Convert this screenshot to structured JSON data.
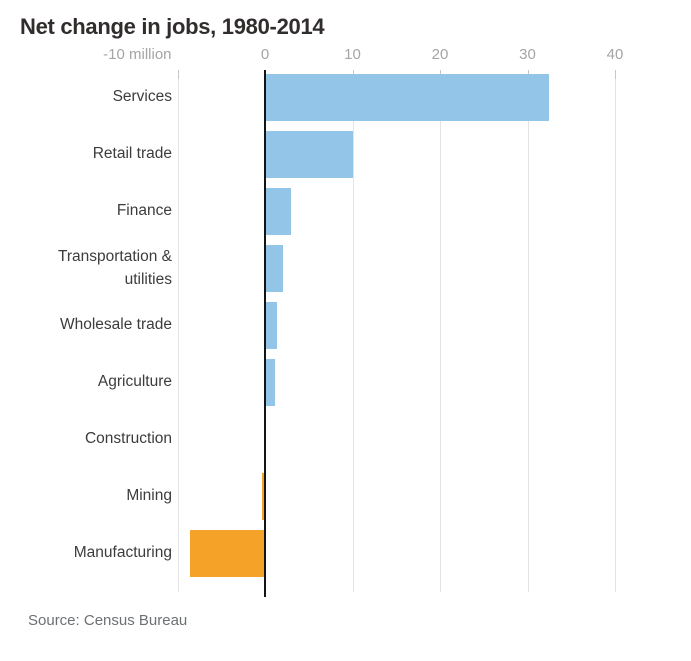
{
  "source": "Source: Census Bureau",
  "chart_data": {
    "type": "bar",
    "orientation": "horizontal",
    "title": "Net change in jobs, 1980-2014",
    "unit": "million jobs",
    "categories": [
      "Services",
      "Retail trade",
      "Finance",
      "Transportation & utilities",
      "Wholesale trade",
      "Agriculture",
      "Construction",
      "Mining",
      "Manufacturing"
    ],
    "values": [
      32.5,
      10.1,
      3.0,
      2.0,
      1.4,
      1.1,
      0,
      -0.3,
      -8.6
    ],
    "xlim": [
      -10,
      45
    ],
    "xticks": [
      {
        "label": "-10 million",
        "value": -10
      },
      {
        "label": "0",
        "value": 0
      },
      {
        "label": "10",
        "value": 10
      },
      {
        "label": "20",
        "value": 20
      },
      {
        "label": "30",
        "value": 30
      },
      {
        "label": "40",
        "value": 40
      }
    ],
    "grid": true,
    "legend": false,
    "colors": {
      "positive": "#92c5e8",
      "negative": "#f5a328",
      "zero_axis": "#141414",
      "gridline": "#e4e4e4"
    }
  }
}
